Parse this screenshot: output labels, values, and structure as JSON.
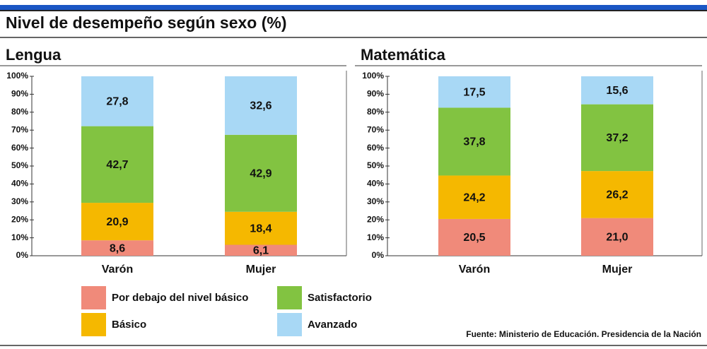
{
  "title": "Nivel de desempeño según sexo (%)",
  "source": "Fuente: Ministerio de Educación. Presidencia de la Nación",
  "chart_data": [
    {
      "type": "stacked_bar",
      "title": "Lengua",
      "categories": [
        "Varón",
        "Mujer"
      ],
      "series": [
        {
          "name": "Por debajo del nivel básico",
          "color": "#f08a7a",
          "values": [
            8.6,
            6.1
          ],
          "value_labels": [
            "8,6",
            "6,1"
          ]
        },
        {
          "name": "Básico",
          "color": "#f5b800",
          "values": [
            20.9,
            18.4
          ],
          "value_labels": [
            "20,9",
            "18,4"
          ]
        },
        {
          "name": "Satisfactorio",
          "color": "#82c341",
          "values": [
            42.7,
            42.9
          ],
          "value_labels": [
            "42,7",
            "42,9"
          ]
        },
        {
          "name": "Avanzado",
          "color": "#a8d8f5",
          "values": [
            27.8,
            32.6
          ],
          "value_labels": [
            "27,8",
            "32,6"
          ]
        }
      ],
      "ylim": [
        0,
        100
      ],
      "yticks": [
        {
          "value": 0,
          "label": "0%"
        },
        {
          "value": 10,
          "label": "10%"
        },
        {
          "value": 20,
          "label": "20%"
        },
        {
          "value": 30,
          "label": "30%"
        },
        {
          "value": 40,
          "label": "40%"
        },
        {
          "value": 50,
          "label": "50%"
        },
        {
          "value": 60,
          "label": "60%"
        },
        {
          "value": 70,
          "label": "70%"
        },
        {
          "value": 80,
          "label": "80%"
        },
        {
          "value": 90,
          "label": "90%"
        },
        {
          "value": 100,
          "label": "100%"
        }
      ]
    },
    {
      "type": "stacked_bar",
      "title": "Matemática",
      "categories": [
        "Varón",
        "Mujer"
      ],
      "series": [
        {
          "name": "Por debajo del nivel básico",
          "color": "#f08a7a",
          "values": [
            20.5,
            21.0
          ],
          "value_labels": [
            "20,5",
            "21,0"
          ]
        },
        {
          "name": "Básico",
          "color": "#f5b800",
          "values": [
            24.2,
            26.2
          ],
          "value_labels": [
            "24,2",
            "26,2"
          ]
        },
        {
          "name": "Satisfactorio",
          "color": "#82c341",
          "values": [
            37.8,
            37.2
          ],
          "value_labels": [
            "37,8",
            "37,2"
          ]
        },
        {
          "name": "Avanzado",
          "color": "#a8d8f5",
          "values": [
            17.5,
            15.6
          ],
          "value_labels": [
            "17,5",
            "15,6"
          ]
        }
      ],
      "ylim": [
        0,
        100
      ],
      "yticks": [
        {
          "value": 0,
          "label": "0%"
        },
        {
          "value": 10,
          "label": "10%"
        },
        {
          "value": 20,
          "label": "20%"
        },
        {
          "value": 30,
          "label": "30%"
        },
        {
          "value": 40,
          "label": "40%"
        },
        {
          "value": 50,
          "label": "50%"
        },
        {
          "value": 60,
          "label": "60%"
        },
        {
          "value": 70,
          "label": "70%"
        },
        {
          "value": 80,
          "label": "80%"
        },
        {
          "value": 90,
          "label": "90%"
        },
        {
          "value": 100,
          "label": "100%"
        }
      ]
    }
  ]
}
